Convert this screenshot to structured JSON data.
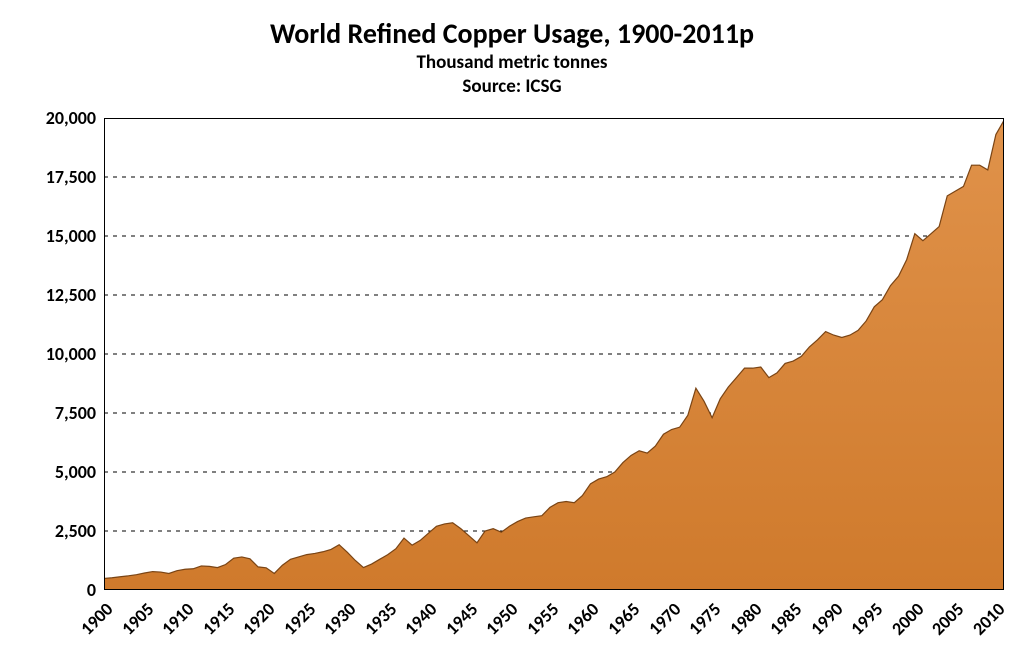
{
  "chart": {
    "type": "area",
    "title": "World Refined Copper Usage, 1900-2011p",
    "subtitle": "Thousand metric tonnes",
    "source_label": "Source: ICSG",
    "title_fontsize": 28,
    "subtitle_fontsize": 19,
    "label_fontsize": 18,
    "background_color": "#ffffff",
    "plot_border_color": "#000000",
    "plot_border_width": 2,
    "grid_color": "#000000",
    "grid_dash": "4,5",
    "area_fill_top": "#e0924a",
    "area_fill_bottom": "#cf7a2c",
    "area_stroke_color": "#b55f1e",
    "area_stroke_width": 1.2,
    "area_stroke_top_dark": "#7a4414",
    "x_axis": {
      "min": 1900,
      "max": 2011,
      "tick_step": 5,
      "tick_labels": [
        "1900",
        "1905",
        "1910",
        "1915",
        "1920",
        "1925",
        "1930",
        "1935",
        "1940",
        "1945",
        "1950",
        "1955",
        "1960",
        "1965",
        "1970",
        "1975",
        "1980",
        "1985",
        "1990",
        "1995",
        "2000",
        "2005",
        "2010"
      ],
      "label_rotation_deg": -45
    },
    "y_axis": {
      "min": 0,
      "max": 20000,
      "tick_step": 2500,
      "tick_labels": [
        "0",
        "2,500",
        "5,000",
        "7,500",
        "10,000",
        "12,500",
        "15,000",
        "17,500",
        "20,000"
      ]
    },
    "series": [
      {
        "year": 1900,
        "value": 490
      },
      {
        "year": 1901,
        "value": 520
      },
      {
        "year": 1902,
        "value": 560
      },
      {
        "year": 1903,
        "value": 600
      },
      {
        "year": 1904,
        "value": 650
      },
      {
        "year": 1905,
        "value": 720
      },
      {
        "year": 1906,
        "value": 780
      },
      {
        "year": 1907,
        "value": 760
      },
      {
        "year": 1908,
        "value": 700
      },
      {
        "year": 1909,
        "value": 820
      },
      {
        "year": 1910,
        "value": 880
      },
      {
        "year": 1911,
        "value": 900
      },
      {
        "year": 1912,
        "value": 1020
      },
      {
        "year": 1913,
        "value": 1000
      },
      {
        "year": 1914,
        "value": 950
      },
      {
        "year": 1915,
        "value": 1080
      },
      {
        "year": 1916,
        "value": 1350
      },
      {
        "year": 1917,
        "value": 1400
      },
      {
        "year": 1918,
        "value": 1320
      },
      {
        "year": 1919,
        "value": 980
      },
      {
        "year": 1920,
        "value": 940
      },
      {
        "year": 1921,
        "value": 700
      },
      {
        "year": 1922,
        "value": 1050
      },
      {
        "year": 1923,
        "value": 1300
      },
      {
        "year": 1924,
        "value": 1400
      },
      {
        "year": 1925,
        "value": 1500
      },
      {
        "year": 1926,
        "value": 1550
      },
      {
        "year": 1927,
        "value": 1620
      },
      {
        "year": 1928,
        "value": 1720
      },
      {
        "year": 1929,
        "value": 1920
      },
      {
        "year": 1930,
        "value": 1600
      },
      {
        "year": 1931,
        "value": 1250
      },
      {
        "year": 1932,
        "value": 950
      },
      {
        "year": 1933,
        "value": 1100
      },
      {
        "year": 1934,
        "value": 1300
      },
      {
        "year": 1935,
        "value": 1500
      },
      {
        "year": 1936,
        "value": 1750
      },
      {
        "year": 1937,
        "value": 2200
      },
      {
        "year": 1938,
        "value": 1900
      },
      {
        "year": 1939,
        "value": 2100
      },
      {
        "year": 1940,
        "value": 2400
      },
      {
        "year": 1941,
        "value": 2700
      },
      {
        "year": 1942,
        "value": 2800
      },
      {
        "year": 1943,
        "value": 2850
      },
      {
        "year": 1944,
        "value": 2600
      },
      {
        "year": 1945,
        "value": 2300
      },
      {
        "year": 1946,
        "value": 2000
      },
      {
        "year": 1947,
        "value": 2500
      },
      {
        "year": 1948,
        "value": 2600
      },
      {
        "year": 1949,
        "value": 2450
      },
      {
        "year": 1950,
        "value": 2700
      },
      {
        "year": 1951,
        "value": 2900
      },
      {
        "year": 1952,
        "value": 3050
      },
      {
        "year": 1953,
        "value": 3100
      },
      {
        "year": 1954,
        "value": 3150
      },
      {
        "year": 1955,
        "value": 3500
      },
      {
        "year": 1956,
        "value": 3700
      },
      {
        "year": 1957,
        "value": 3750
      },
      {
        "year": 1958,
        "value": 3700
      },
      {
        "year": 1959,
        "value": 4000
      },
      {
        "year": 1960,
        "value": 4500
      },
      {
        "year": 1961,
        "value": 4700
      },
      {
        "year": 1962,
        "value": 4800
      },
      {
        "year": 1963,
        "value": 5000
      },
      {
        "year": 1964,
        "value": 5400
      },
      {
        "year": 1965,
        "value": 5700
      },
      {
        "year": 1966,
        "value": 5900
      },
      {
        "year": 1967,
        "value": 5800
      },
      {
        "year": 1968,
        "value": 6100
      },
      {
        "year": 1969,
        "value": 6600
      },
      {
        "year": 1970,
        "value": 6800
      },
      {
        "year": 1971,
        "value": 6900
      },
      {
        "year": 1972,
        "value": 7400
      },
      {
        "year": 1973,
        "value": 8550
      },
      {
        "year": 1974,
        "value": 8000
      },
      {
        "year": 1975,
        "value": 7300
      },
      {
        "year": 1976,
        "value": 8100
      },
      {
        "year": 1977,
        "value": 8600
      },
      {
        "year": 1978,
        "value": 9000
      },
      {
        "year": 1979,
        "value": 9400
      },
      {
        "year": 1980,
        "value": 9400
      },
      {
        "year": 1981,
        "value": 9450
      },
      {
        "year": 1982,
        "value": 9000
      },
      {
        "year": 1983,
        "value": 9200
      },
      {
        "year": 1984,
        "value": 9600
      },
      {
        "year": 1985,
        "value": 9700
      },
      {
        "year": 1986,
        "value": 9900
      },
      {
        "year": 1987,
        "value": 10300
      },
      {
        "year": 1988,
        "value": 10600
      },
      {
        "year": 1989,
        "value": 10950
      },
      {
        "year": 1990,
        "value": 10800
      },
      {
        "year": 1991,
        "value": 10700
      },
      {
        "year": 1992,
        "value": 10800
      },
      {
        "year": 1993,
        "value": 11000
      },
      {
        "year": 1994,
        "value": 11400
      },
      {
        "year": 1995,
        "value": 12000
      },
      {
        "year": 1996,
        "value": 12300
      },
      {
        "year": 1997,
        "value": 12900
      },
      {
        "year": 1998,
        "value": 13300
      },
      {
        "year": 1999,
        "value": 14000
      },
      {
        "year": 2000,
        "value": 15100
      },
      {
        "year": 2001,
        "value": 14800
      },
      {
        "year": 2002,
        "value": 15100
      },
      {
        "year": 2003,
        "value": 15400
      },
      {
        "year": 2004,
        "value": 16700
      },
      {
        "year": 2005,
        "value": 16900
      },
      {
        "year": 2006,
        "value": 17100
      },
      {
        "year": 2007,
        "value": 18000
      },
      {
        "year": 2008,
        "value": 18000
      },
      {
        "year": 2009,
        "value": 17800
      },
      {
        "year": 2010,
        "value": 19300
      },
      {
        "year": 2011,
        "value": 19900
      }
    ]
  }
}
